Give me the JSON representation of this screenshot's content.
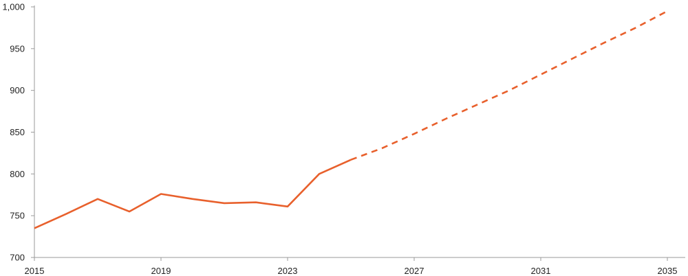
{
  "chart_data": {
    "type": "line",
    "title": "",
    "xlabel": "",
    "ylabel": "",
    "ylim": [
      700,
      1000
    ],
    "xlim": [
      2015,
      2035
    ],
    "y_ticks": [
      700,
      750,
      800,
      850,
      900,
      950,
      1000
    ],
    "y_tick_labels": [
      "700",
      "750",
      "800",
      "850",
      "900",
      "950",
      "1,000"
    ],
    "x_ticks": [
      2015,
      2019,
      2023,
      2027,
      2031,
      2035
    ],
    "x_tick_labels": [
      "2015",
      "2019",
      "2023",
      "2027",
      "2031",
      "2035"
    ],
    "grid": false,
    "colors": {
      "series": "#e8602c",
      "axis": "#9a9a9a"
    },
    "series": [
      {
        "style": "solid",
        "x": [
          2015,
          2016,
          2017,
          2018,
          2019,
          2020,
          2021,
          2022,
          2023,
          2024,
          2025
        ],
        "y": [
          735,
          752,
          770,
          755,
          776,
          770,
          765,
          766,
          761,
          800,
          817
        ]
      },
      {
        "style": "dashed",
        "x": [
          2025,
          2026,
          2027,
          2028,
          2029,
          2030,
          2031,
          2032,
          2033,
          2034,
          2035
        ],
        "y": [
          817,
          831,
          848,
          866,
          883,
          900,
          919,
          938,
          957,
          975,
          995
        ]
      }
    ]
  }
}
